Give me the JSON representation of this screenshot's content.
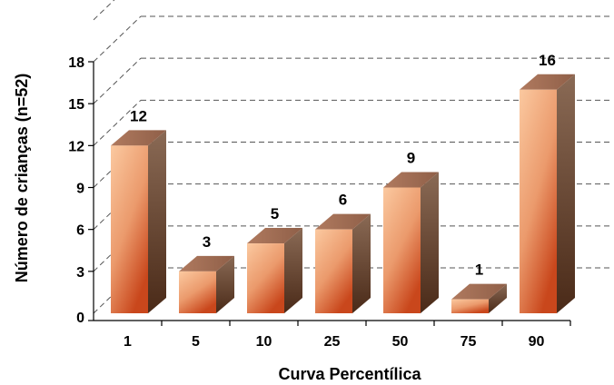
{
  "chart_data": {
    "type": "bar",
    "categories": [
      "1",
      "5",
      "10",
      "25",
      "50",
      "75",
      "90"
    ],
    "values": [
      12,
      3,
      5,
      6,
      9,
      1,
      16
    ],
    "title": "",
    "xlabel": "Curva Percentílica",
    "ylabel": "Número de crianças (n=52)",
    "ylim": [
      0,
      18
    ],
    "yticks": [
      0,
      3,
      6,
      9,
      12,
      15,
      18
    ],
    "grid": true,
    "legend": "none",
    "bar_color": "#e8956a",
    "bar_side_color": "#6b4a35",
    "bar_top_color": "#a5735a"
  }
}
